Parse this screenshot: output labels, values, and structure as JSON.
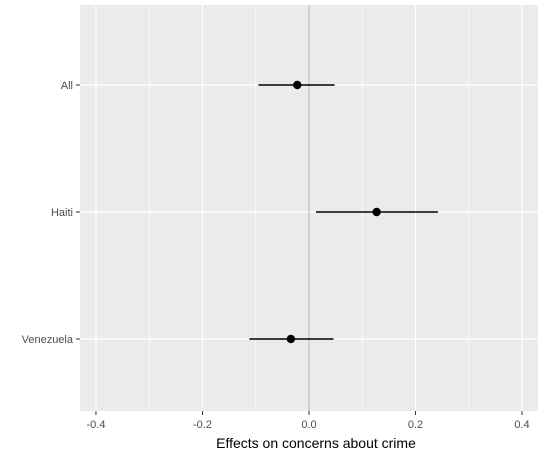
{
  "chart_data": {
    "type": "scatter",
    "subtype": "coefficient-plot-with-confidence-intervals",
    "title": "",
    "xlabel": "Effects on concerns about crime",
    "ylabel": "",
    "xlim": [
      -0.43,
      0.43
    ],
    "x_ticks": [
      -0.4,
      -0.2,
      0.0,
      0.2,
      0.4
    ],
    "x_tick_labels": [
      "-0.4",
      "-0.2",
      "0.0",
      "0.2",
      "0.4"
    ],
    "categories": [
      "All",
      "Haiti",
      "Venezuela"
    ],
    "points": [
      {
        "label": "All",
        "estimate": -0.022,
        "ci_low": -0.095,
        "ci_high": 0.048
      },
      {
        "label": "Haiti",
        "estimate": 0.127,
        "ci_low": 0.013,
        "ci_high": 0.242
      },
      {
        "label": "Venezuela",
        "estimate": -0.034,
        "ci_low": -0.112,
        "ci_high": 0.046
      }
    ],
    "reference_line_x": 0,
    "grid": true,
    "panel_background": "#ebebeb",
    "grid_color": "#ffffff",
    "reference_line_color": "#b3b3b3",
    "point_color": "#000000",
    "legend": "none"
  }
}
